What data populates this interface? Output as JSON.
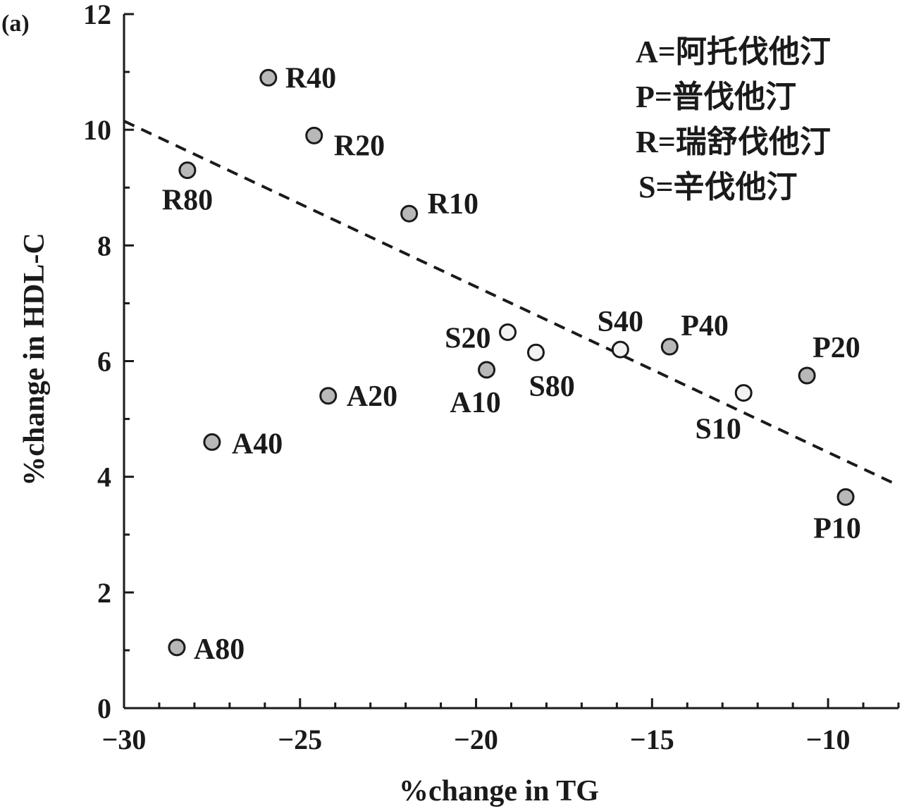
{
  "panel_label": "(a)",
  "legend": [
    "A=阿托伐他汀",
    "P=普伐他汀",
    "R=瑞舒伐他汀",
    "S=辛伐他汀"
  ],
  "colors": {
    "filled": "#b8b8b8",
    "open": "#f2f2f2",
    "stroke": "#1a1a1a",
    "text": "#1a1a1a"
  },
  "chart_data": {
    "type": "scatter",
    "xlabel": "%change in TG",
    "ylabel": "%change in HDL-C",
    "xlim": [
      -30,
      -8
    ],
    "ylim": [
      0,
      12
    ],
    "xticks": [
      -30,
      -25,
      -20,
      -15,
      -10
    ],
    "xtick_labels": [
      "−30",
      "−25",
      "−20",
      "−15",
      "−10"
    ],
    "yticks": [
      0,
      2,
      4,
      6,
      8,
      10,
      12
    ],
    "ytick_labels": [
      "0",
      "2",
      "4",
      "6",
      "8",
      "10",
      "12"
    ],
    "x_minor_step": 1,
    "y_minor_step": 1,
    "grid": false,
    "legend_position": "top-right",
    "points": [
      {
        "label": "R40",
        "x": -25.9,
        "y": 10.9,
        "group": "R"
      },
      {
        "label": "R20",
        "x": -24.6,
        "y": 9.9,
        "group": "R"
      },
      {
        "label": "R80",
        "x": -28.2,
        "y": 9.3,
        "group": "R"
      },
      {
        "label": "R10",
        "x": -21.9,
        "y": 8.55,
        "group": "R"
      },
      {
        "label": "S20",
        "x": -19.1,
        "y": 6.5,
        "group": "S"
      },
      {
        "label": "S80",
        "x": -18.3,
        "y": 6.15,
        "group": "S"
      },
      {
        "label": "S40",
        "x": -15.9,
        "y": 6.2,
        "group": "S"
      },
      {
        "label": "S10",
        "x": -12.4,
        "y": 5.45,
        "group": "S"
      },
      {
        "label": "A10",
        "x": -19.7,
        "y": 5.85,
        "group": "A"
      },
      {
        "label": "A20",
        "x": -24.2,
        "y": 5.4,
        "group": "A"
      },
      {
        "label": "A40",
        "x": -27.5,
        "y": 4.6,
        "group": "A"
      },
      {
        "label": "A80",
        "x": -28.5,
        "y": 1.05,
        "group": "A"
      },
      {
        "label": "P40",
        "x": -14.5,
        "y": 6.25,
        "group": "P"
      },
      {
        "label": "P20",
        "x": -10.6,
        "y": 5.75,
        "group": "P"
      },
      {
        "label": "P10",
        "x": -9.5,
        "y": 3.65,
        "group": "P"
      }
    ],
    "trendline": {
      "style": "dashed",
      "x": [
        -30,
        -8
      ],
      "y": [
        10.15,
        3.85
      ]
    }
  }
}
